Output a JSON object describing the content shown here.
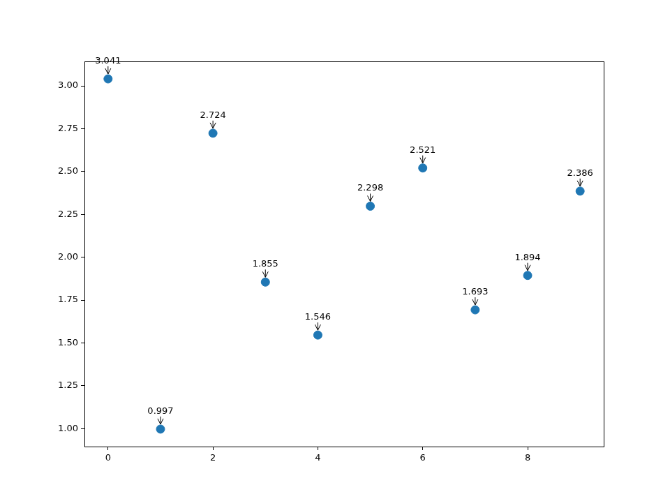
{
  "chart_data": {
    "type": "scatter",
    "x": [
      0,
      1,
      2,
      3,
      4,
      5,
      6,
      7,
      8,
      9
    ],
    "values": [
      3.041,
      0.997,
      2.724,
      1.855,
      1.546,
      2.298,
      2.521,
      1.693,
      1.894,
      2.386
    ],
    "color": "#1f77b4",
    "marker": "circle",
    "data_labels": true,
    "grid": false,
    "xlim": [
      -0.45,
      9.45
    ],
    "xticks": [
      0,
      2,
      4,
      6,
      8
    ],
    "ylim": [
      0.895,
      3.143
    ],
    "yticks": [
      {
        "value": 1,
        "label": "1.00"
      },
      {
        "value": 1.25,
        "label": "1.25"
      },
      {
        "value": 1.5,
        "label": "1.50"
      },
      {
        "value": 1.75,
        "label": "1.75"
      },
      {
        "value": 2,
        "label": "2.00"
      },
      {
        "value": 2.25,
        "label": "2.25"
      },
      {
        "value": 2.5,
        "label": "2.50"
      },
      {
        "value": 2.75,
        "label": "2.75"
      },
      {
        "value": 3,
        "label": "3.00"
      }
    ]
  }
}
